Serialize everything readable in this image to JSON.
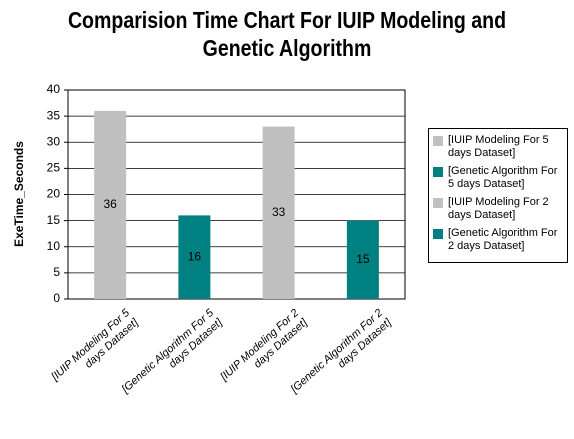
{
  "chart_data": {
    "type": "bar",
    "title": "Comparision Time Chart For IUIP Modeling and Genetic Algorithm",
    "y_label": "ExeTime_Seconds",
    "categories": [
      "[IUIP Modeling For 5 days Dataset]",
      "[Genetic Algorithm  For 5 days Dataset]",
      "[IUIP Modeling  For 2 days Dataset]",
      "[Genetic Algorithm  For 2 days Dataset]"
    ],
    "values": [
      36,
      16,
      33,
      15
    ],
    "colors": [
      "#c0c0c0",
      "#008080",
      "#c0c0c0",
      "#008080"
    ],
    "ylim": [
      0,
      40
    ],
    "yticks": [
      0,
      5,
      10,
      15,
      20,
      25,
      30,
      35,
      40
    ],
    "grid": true,
    "legend": "right"
  }
}
